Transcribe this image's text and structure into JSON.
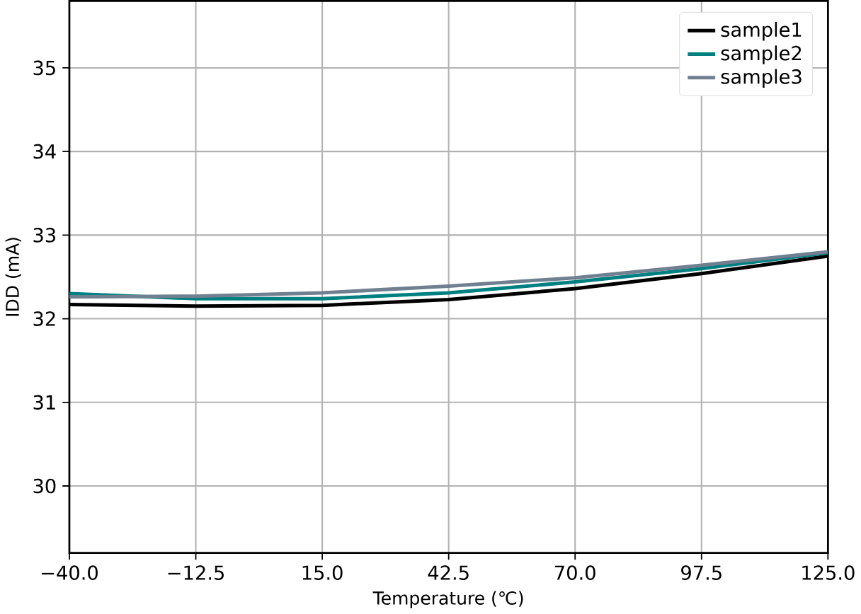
{
  "chart_data": {
    "type": "line",
    "xlabel": "Temperature (℃)",
    "ylabel": "IDD (mA)",
    "x": [
      -40,
      -12.5,
      15,
      42.5,
      70,
      97.5,
      125
    ],
    "series": [
      {
        "name": "sample1",
        "color": "#000000",
        "values": [
          32.17,
          32.15,
          32.16,
          32.23,
          32.36,
          32.54,
          32.75
        ]
      },
      {
        "name": "sample2",
        "color": "#008080",
        "values": [
          32.3,
          32.24,
          32.24,
          32.31,
          32.44,
          32.6,
          32.79
        ]
      },
      {
        "name": "sample3",
        "color": "#708090",
        "values": [
          32.26,
          32.27,
          32.31,
          32.39,
          32.49,
          32.64,
          32.8
        ]
      }
    ],
    "xlim": [
      -40,
      125
    ],
    "ylim": [
      29.2,
      35.8
    ],
    "xticks": [
      {
        "value": -40,
        "label": "−40.0"
      },
      {
        "value": -12.5,
        "label": "−12.5"
      },
      {
        "value": 15,
        "label": "15.0"
      },
      {
        "value": 42.5,
        "label": "42.5"
      },
      {
        "value": 70,
        "label": "70.0"
      },
      {
        "value": 97.5,
        "label": "97.5"
      },
      {
        "value": 125,
        "label": "125.0"
      }
    ],
    "yticks": [
      30,
      31,
      32,
      33,
      34,
      35
    ],
    "grid": true,
    "legend": "top right",
    "line_style": "solid",
    "marker": "none"
  }
}
